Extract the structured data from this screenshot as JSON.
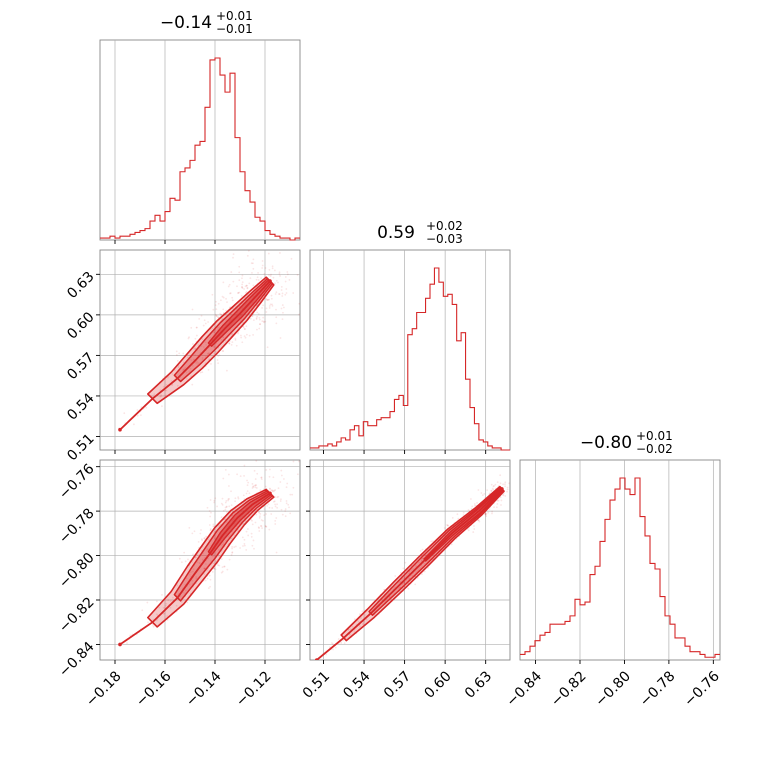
{
  "colors": {
    "accent": "#d62728",
    "grid": "#b0b0b0",
    "frame": "#888888"
  },
  "chart_data": {
    "type": "corner",
    "parameters": [
      {
        "title": {
          "median": "−0.14",
          "upper": "+0.01",
          "lower": "−0.01"
        },
        "range": [
          -0.186,
          -0.106
        ],
        "ticks": [
          -0.18,
          -0.16,
          -0.14,
          -0.12
        ],
        "tick_labels": [
          "−0.18",
          "−0.16",
          "−0.14",
          "−0.12"
        ]
      },
      {
        "title": {
          "median": "0.59",
          "upper": "+0.02",
          "lower": "−0.03"
        },
        "range": [
          0.5,
          0.648
        ],
        "ticks": [
          0.51,
          0.54,
          0.57,
          0.6,
          0.63
        ],
        "tick_labels": [
          "0.51",
          "0.54",
          "0.57",
          "0.60",
          "0.63"
        ]
      },
      {
        "title": {
          "median": "−0.80",
          "upper": "+0.01",
          "lower": "−0.02"
        },
        "range": [
          -0.847,
          -0.757
        ],
        "ticks": [
          -0.84,
          -0.82,
          -0.8,
          -0.78,
          -0.76
        ],
        "tick_labels": [
          "−0.84",
          "−0.82",
          "−0.80",
          "−0.78",
          "−0.76"
        ]
      }
    ],
    "histograms": [
      {
        "param": 0,
        "bin_edges_range": [
          -0.186,
          -0.106
        ],
        "counts": [
          1,
          1,
          2,
          1,
          2,
          2,
          3,
          4,
          5,
          6,
          10,
          13,
          10,
          15,
          22,
          21,
          36,
          38,
          42,
          50,
          52,
          70,
          95,
          96,
          87,
          78,
          88,
          54,
          36,
          26,
          20,
          12,
          10,
          5,
          3,
          2,
          1,
          1,
          0,
          1
        ]
      },
      {
        "param": 1,
        "bin_edges_range": [
          0.5,
          0.648
        ],
        "counts": [
          1,
          1,
          2,
          2,
          3,
          2,
          4,
          6,
          5,
          10,
          12,
          7,
          14,
          12,
          12,
          15,
          16,
          16,
          19,
          25,
          27,
          22,
          57,
          60,
          68,
          68,
          75,
          82,
          90,
          83,
          76,
          77,
          72,
          54,
          58,
          35,
          21,
          13,
          5,
          4,
          2,
          1,
          1,
          0,
          0
        ]
      },
      {
        "param": 2,
        "bin_edges_range": [
          -0.847,
          -0.757
        ],
        "counts": [
          2,
          3,
          5,
          7,
          9,
          10,
          13,
          13,
          13,
          14,
          16,
          22,
          20,
          21,
          31,
          34,
          43,
          51,
          58,
          62,
          66,
          62,
          60,
          66,
          52,
          45,
          35,
          33,
          23,
          16,
          13,
          8,
          8,
          5,
          3,
          3,
          2,
          1,
          1,
          2
        ]
      }
    ],
    "pairs": [
      {
        "x_param": 0,
        "y_param": 1,
        "ridge": [
          [
            -0.178,
            0.515
          ],
          [
            -0.165,
            0.538
          ],
          [
            -0.155,
            0.553
          ],
          [
            -0.148,
            0.566
          ],
          [
            -0.142,
            0.578
          ],
          [
            -0.136,
            0.59
          ],
          [
            -0.13,
            0.601
          ],
          [
            -0.124,
            0.613
          ],
          [
            -0.118,
            0.625
          ]
        ]
      },
      {
        "x_param": 0,
        "y_param": 2,
        "ridge": [
          [
            -0.178,
            -0.84
          ],
          [
            -0.165,
            -0.83
          ],
          [
            -0.155,
            -0.819
          ],
          [
            -0.148,
            -0.808
          ],
          [
            -0.142,
            -0.799
          ],
          [
            -0.137,
            -0.791
          ],
          [
            -0.131,
            -0.783
          ],
          [
            -0.125,
            -0.777
          ],
          [
            -0.118,
            -0.772
          ]
        ]
      },
      {
        "x_param": 1,
        "y_param": 2,
        "ridge": [
          [
            0.505,
            -0.847
          ],
          [
            0.525,
            -0.837
          ],
          [
            0.545,
            -0.826
          ],
          [
            0.565,
            -0.814
          ],
          [
            0.585,
            -0.802
          ],
          [
            0.605,
            -0.79
          ],
          [
            0.625,
            -0.78
          ],
          [
            0.642,
            -0.77
          ]
        ]
      }
    ],
    "grid": true
  }
}
